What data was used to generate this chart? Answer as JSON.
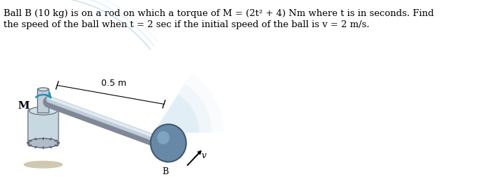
{
  "title_line1": "Ball B (10 kg) is on a rod on which a torque of M = (2t² + 4) Nm where t is in seconds. Find",
  "title_line2": "the speed of the ball when t = 2 sec if the initial speed of the ball is v = 2 m/s.",
  "label_M": "M",
  "label_B": "B",
  "label_v": "v",
  "label_05m": "0.5 m",
  "bg_color": "#ffffff",
  "rod_color": "#a0a0a0",
  "ball_color": "#7090b0",
  "cylinder_color": "#b8c8d8",
  "text_color": "#000000",
  "fig_width": 7.18,
  "fig_height": 2.54
}
